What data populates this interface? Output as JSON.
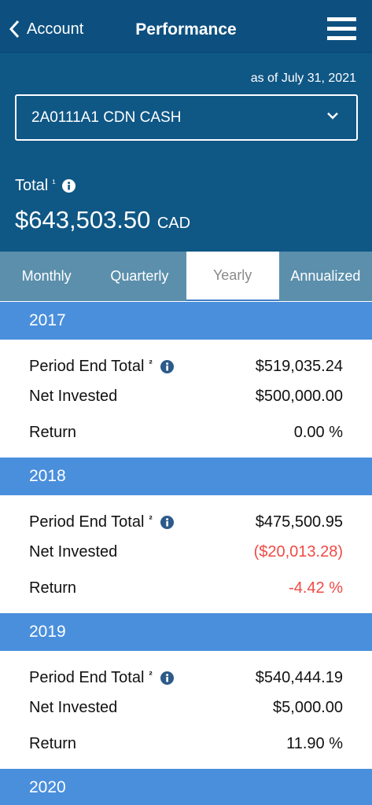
{
  "header": {
    "back": "Account",
    "title": "Performance"
  },
  "as_of": "as of July 31, 2021",
  "account": "2A0111A1 CDN CASH",
  "total": {
    "label": "Total",
    "marker": "¹",
    "amount": "$643,503.50",
    "currency": "CAD"
  },
  "tabs": [
    "Monthly",
    "Quarterly",
    "Yearly",
    "Annualized"
  ],
  "selected_tab": 2,
  "negative_color": "#f04a45",
  "years": [
    {
      "year": "2017",
      "rows": [
        {
          "label": "Period End Total",
          "marker": "²",
          "value": "$519,035.24"
        },
        {
          "label": "Net Invested",
          "value": "$500,000.00"
        },
        {
          "label": "Return",
          "value": "0.00 %"
        }
      ]
    },
    {
      "year": "2018",
      "rows": [
        {
          "label": "Period End Total",
          "marker": "²",
          "value": "$475,500.95"
        },
        {
          "label": "Net Invested",
          "value": "($20,013.28)",
          "negative": true
        },
        {
          "label": "Return",
          "value": "-4.42 %",
          "negative": true
        }
      ]
    },
    {
      "year": "2019",
      "rows": [
        {
          "label": "Period End Total",
          "marker": "²",
          "value": "$540,444.19"
        },
        {
          "label": "Net Invested",
          "value": "$5,000.00"
        },
        {
          "label": "Return",
          "value": "11.90 %"
        }
      ]
    },
    {
      "year": "2020",
      "rows": []
    }
  ]
}
